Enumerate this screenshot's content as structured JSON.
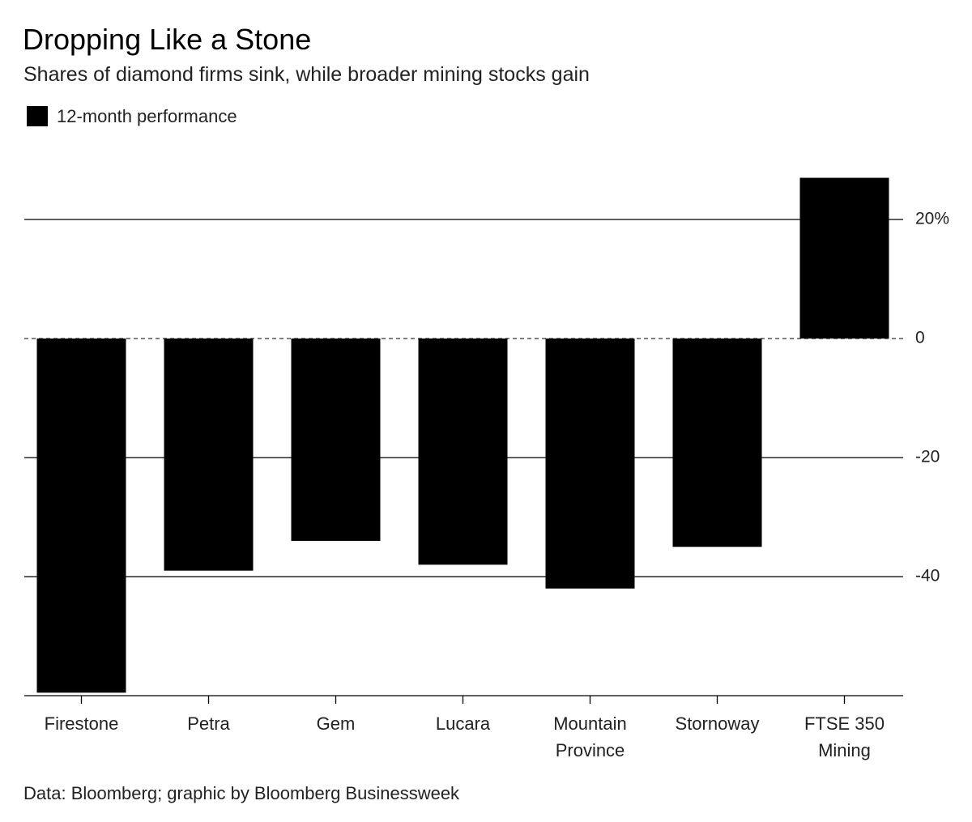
{
  "chart_data": {
    "type": "bar",
    "title": "Dropping Like a Stone",
    "subtitle": "Shares of diamond firms sink, while broader mining stocks gain",
    "source": "Data: Bloomberg; graphic by Bloomberg Businessweek",
    "categories": [
      "Firestone",
      "Petra",
      "Gem",
      "Lucara",
      "Mountain Province",
      "Stornoway",
      "FTSE 350 Mining"
    ],
    "series": [
      {
        "name": "12-month performance",
        "color": "#000000",
        "values": [
          -59.5,
          -39,
          -34,
          -38,
          -42,
          -35,
          27
        ]
      }
    ],
    "ylim": [
      -60,
      30
    ],
    "yticks": [
      {
        "value": 20,
        "label": "20%"
      },
      0,
      -20,
      -40
    ],
    "grid": true
  }
}
